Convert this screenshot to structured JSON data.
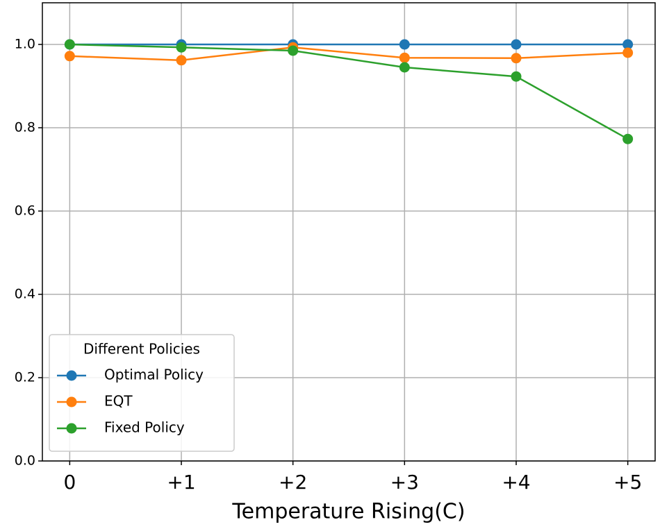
{
  "chart_data": {
    "type": "line",
    "xlabel": "Temperature Rising(C)",
    "categories": [
      "0",
      "+1",
      "+2",
      "+3",
      "+4",
      "+5"
    ],
    "series": [
      {
        "name": "Optimal Policy",
        "color": "#1f77b4",
        "values": [
          1.0,
          1.0,
          1.0,
          1.0,
          1.0,
          1.0
        ]
      },
      {
        "name": "EQT",
        "color": "#ff7f0e",
        "values": [
          0.972,
          0.962,
          0.993,
          0.968,
          0.967,
          0.98
        ]
      },
      {
        "name": "Fixed Policy",
        "color": "#2ca02c",
        "values": [
          1.0,
          0.993,
          0.985,
          0.945,
          0.923,
          0.773
        ]
      }
    ],
    "ylim": [
      0,
      1.1
    ],
    "yticks": [
      {
        "value": 0,
        "label": "0.0"
      },
      0.2,
      0.4,
      0.6,
      0.8,
      {
        "value": 1,
        "label": "1.0"
      }
    ],
    "grid": true,
    "legend_title": "Different Policies",
    "legend_loc": "lower left"
  }
}
